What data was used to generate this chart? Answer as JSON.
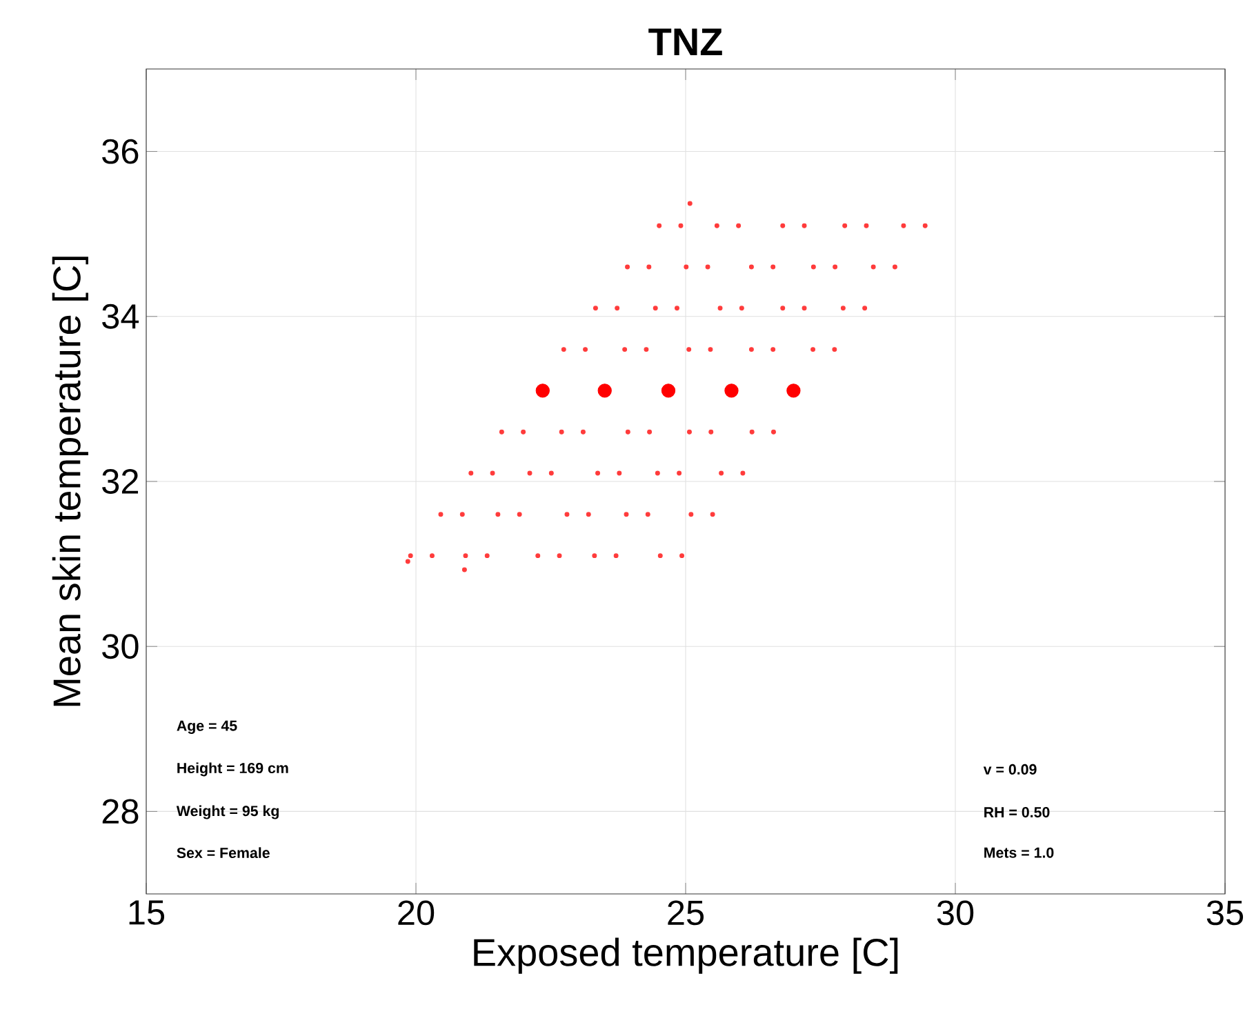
{
  "chart_data": {
    "type": "scatter",
    "title": "TNZ",
    "xlabel": "Exposed temperature [C]",
    "ylabel": "Mean skin temperature [C]",
    "xlim": [
      15,
      35
    ],
    "ylim": [
      27,
      37
    ],
    "xticks": [
      15,
      20,
      25,
      30,
      35
    ],
    "yticks": [
      28,
      30,
      32,
      34,
      36
    ],
    "grid": true,
    "annotations": [
      "Age = 45",
      "Height = 169 cm",
      "Weight = 95 kg",
      "Sex = Female",
      "v = 0.09",
      "RH = 0.50",
      "Mets = 1.0"
    ],
    "series": [
      {
        "color": "#ff3b3b",
        "x": [
          19.85,
          19.9,
          20.3,
          20.46,
          20.86,
          21.02,
          21.42,
          21.59,
          21.99,
          22.74,
          23.14,
          23.33,
          23.73,
          23.92,
          24.32,
          24.51,
          24.91,
          25.08
        ],
        "values": [
          31.03,
          31.1,
          31.1,
          31.6,
          31.6,
          32.1,
          32.1,
          32.6,
          32.6,
          33.6,
          33.6,
          34.1,
          34.1,
          34.6,
          34.6,
          35.1,
          35.1,
          35.37
        ]
      },
      {
        "color": "#ff3b3b",
        "x": [
          20.9,
          20.92,
          21.32,
          21.52,
          21.92,
          22.11,
          22.51,
          22.7,
          23.1,
          23.87,
          24.27,
          24.44,
          24.84,
          25.01,
          25.41,
          25.58,
          25.98
        ],
        "values": [
          30.93,
          31.1,
          31.1,
          31.6,
          31.6,
          32.1,
          32.1,
          32.6,
          32.6,
          33.6,
          33.6,
          34.1,
          34.1,
          34.6,
          34.6,
          35.1,
          35.1
        ]
      },
      {
        "color": "#ff3b3b",
        "x": [
          22.26,
          22.66,
          22.8,
          23.2,
          23.37,
          23.77,
          23.93,
          24.33,
          25.06,
          25.46,
          25.64,
          26.04,
          26.22,
          26.62,
          26.8,
          27.2
        ],
        "values": [
          31.1,
          31.1,
          31.6,
          31.6,
          32.1,
          32.1,
          32.6,
          32.6,
          33.6,
          33.6,
          34.1,
          34.1,
          34.6,
          34.6,
          35.1,
          35.1
        ]
      },
      {
        "color": "#ff3b3b",
        "x": [
          23.31,
          23.71,
          23.9,
          24.3,
          24.48,
          24.88,
          25.07,
          25.47,
          26.22,
          26.62,
          26.8,
          27.2,
          27.37,
          27.77,
          27.95,
          28.35
        ],
        "values": [
          31.1,
          31.1,
          31.6,
          31.6,
          32.1,
          32.1,
          32.6,
          32.6,
          33.6,
          33.6,
          34.1,
          34.1,
          34.6,
          34.6,
          35.1,
          35.1
        ]
      },
      {
        "color": "#ff3b3b",
        "x": [
          24.53,
          24.93,
          25.1,
          25.5,
          25.66,
          26.06,
          26.23,
          26.63,
          27.36,
          27.76,
          27.92,
          28.32,
          28.48,
          28.88,
          29.04,
          29.44
        ],
        "values": [
          31.1,
          31.1,
          31.6,
          31.6,
          32.1,
          32.1,
          32.6,
          32.6,
          33.6,
          33.6,
          34.1,
          34.1,
          34.6,
          34.6,
          35.1,
          35.1
        ]
      },
      {
        "color": "#ff0000",
        "x": [
          22.35,
          23.5,
          24.68,
          25.85,
          27.0
        ],
        "values": [
          33.1,
          33.1,
          33.1,
          33.1,
          33.1
        ]
      }
    ]
  }
}
